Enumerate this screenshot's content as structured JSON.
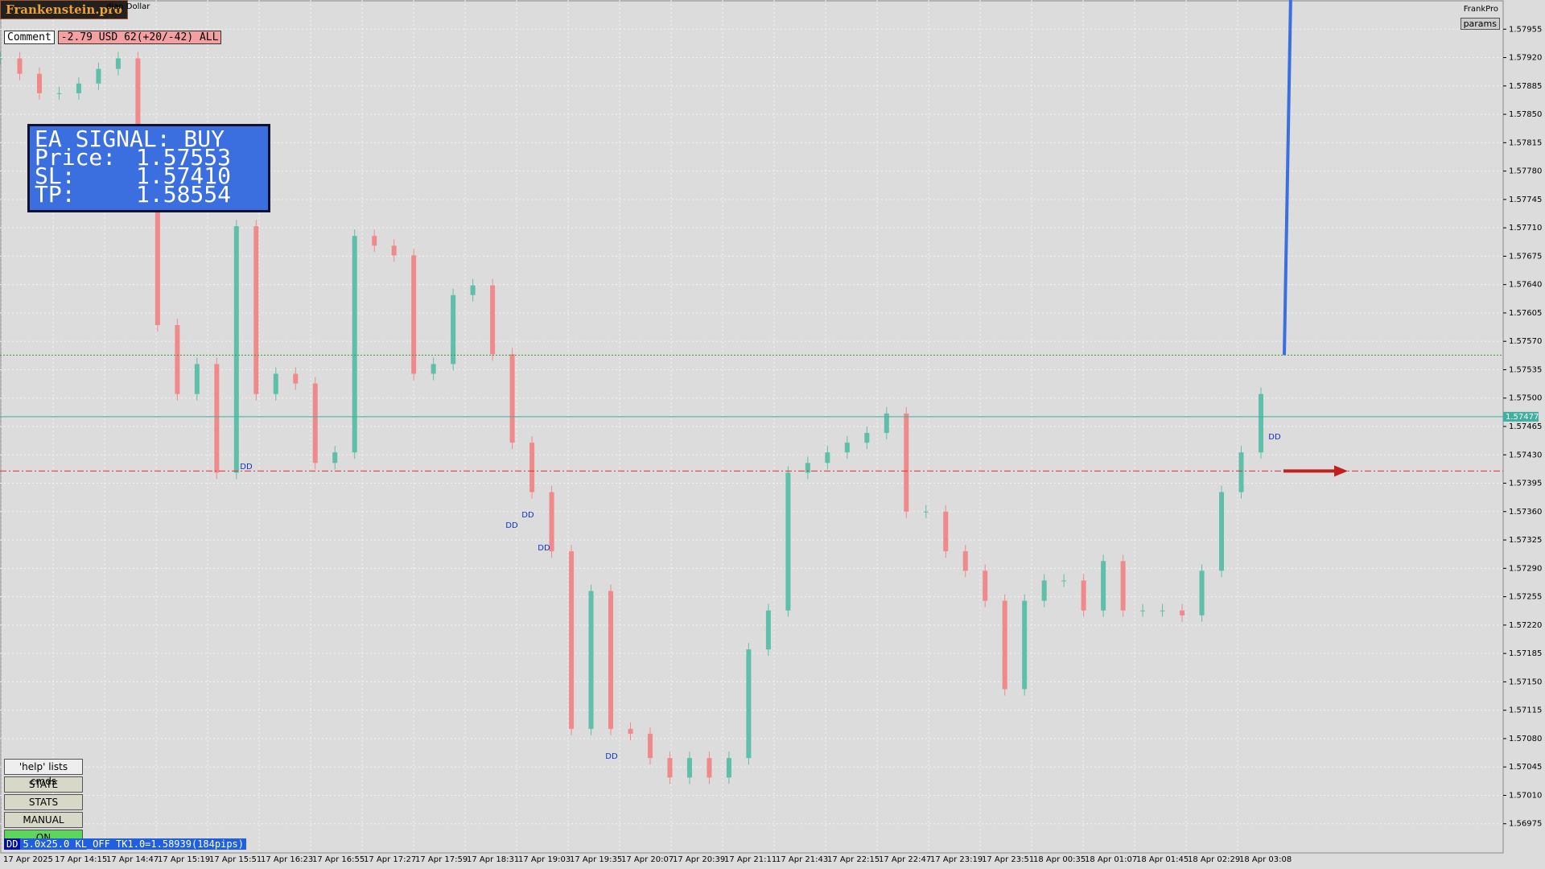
{
  "header": {
    "brand": "Frankenstein.pro",
    "symbol": "dian Dollar",
    "platform": "FrankPro",
    "params": "params"
  },
  "comment": {
    "label": "Comment",
    "value": "-2.79 USD 62(+20/-42) ALL"
  },
  "signal": {
    "title": "EA SIGNAL: BUY",
    "price_label": "Price:",
    "price": 1.57553,
    "sl_label": "SL:",
    "sl": {
      "value": 1.5741,
      "label": "1.57410"
    },
    "tp_label": "TP:",
    "tp": 1.58554
  },
  "price_axis": {
    "ylim": [
      1.56939,
      1.57991
    ],
    "current": 1.57477,
    "ticks": [
      1.56975,
      {
        "value": 1.5701,
        "label": "1.57010"
      },
      1.57045,
      {
        "value": 1.5708,
        "label": "1.57080"
      },
      1.57115,
      {
        "value": 1.5715,
        "label": "1.57150"
      },
      1.57185,
      {
        "value": 1.5722,
        "label": "1.57220"
      },
      1.57255,
      {
        "value": 1.5729,
        "label": "1.57290"
      },
      1.57325,
      {
        "value": 1.5736,
        "label": "1.57360"
      },
      1.57395,
      {
        "value": 1.5743,
        "label": "1.57430"
      },
      1.57465,
      {
        "value": 1.575,
        "label": "1.57500"
      },
      1.57535,
      {
        "value": 1.5757,
        "label": "1.57570"
      },
      1.57605,
      {
        "value": 1.5764,
        "label": "1.57640"
      },
      1.57675,
      {
        "value": 1.5771,
        "label": "1.57710"
      },
      1.57745,
      {
        "value": 1.5778,
        "label": "1.57780"
      },
      1.57815,
      {
        "value": 1.5785,
        "label": "1.57850"
      },
      1.57885,
      {
        "value": 1.5792,
        "label": "1.57920"
      },
      1.57955
    ]
  },
  "time_axis": {
    "labels": [
      "17 Apr 2025",
      "17 Apr 14:15",
      "17 Apr 14:47",
      "17 Apr 15:19",
      "17 Apr 15:51",
      "17 Apr 16:23",
      "17 Apr 16:55",
      "17 Apr 17:27",
      "17 Apr 17:59",
      "17 Apr 18:31",
      "17 Apr 19:03",
      "17 Apr 19:35",
      "17 Apr 20:07",
      "17 Apr 20:39",
      "17 Apr 21:11",
      "17 Apr 21:43",
      "17 Apr 22:15",
      "17 Apr 22:47",
      "17 Apr 23:19",
      "17 Apr 23:51",
      "18 Apr 00:35",
      "18 Apr 01:07",
      "18 Apr 01:45",
      "18 Apr 02:29",
      "18 Apr 03:08"
    ]
  },
  "prices": [
    1.57919,
    1.579,
    1.57876,
    1.57876,
    1.57888,
    1.57906,
    1.57919,
    1.57809,
    1.5759,
    1.57505,
    1.57542,
    1.57408,
    1.57712,
    1.57505,
    1.5753,
    1.57518,
    1.5742,
    1.57433,
    1.577,
    1.57688,
    1.57676,
    1.5753,
    1.57542,
    1.57627,
    1.57639,
    1.57554,
    1.57445,
    1.57384,
    1.57311,
    1.57092,
    1.57262,
    1.57092,
    1.57086,
    1.57056,
    1.57032,
    1.57056,
    1.57032,
    1.57056,
    1.5719,
    1.57238,
    1.57408,
    1.5742,
    1.57433,
    1.57445,
    1.57457,
    1.57481,
    1.5736,
    1.5736,
    1.57311,
    1.57287,
    1.5725,
    1.57141,
    1.5725,
    1.57275,
    1.57275,
    1.57238,
    1.57299,
    1.57238,
    1.57238,
    1.57238,
    1.57232,
    1.57287,
    1.57384,
    1.57433,
    1.57505
  ],
  "markers": {
    "dd": "DD"
  },
  "buttons": [
    "'help' lists cmds",
    "STATE",
    "STATS",
    "MANUAL",
    "ON"
  ],
  "status": {
    "tag": "DD",
    "text": "5.0x25.0 KL_OFF TK1.0=1.58939(184pips)"
  }
}
